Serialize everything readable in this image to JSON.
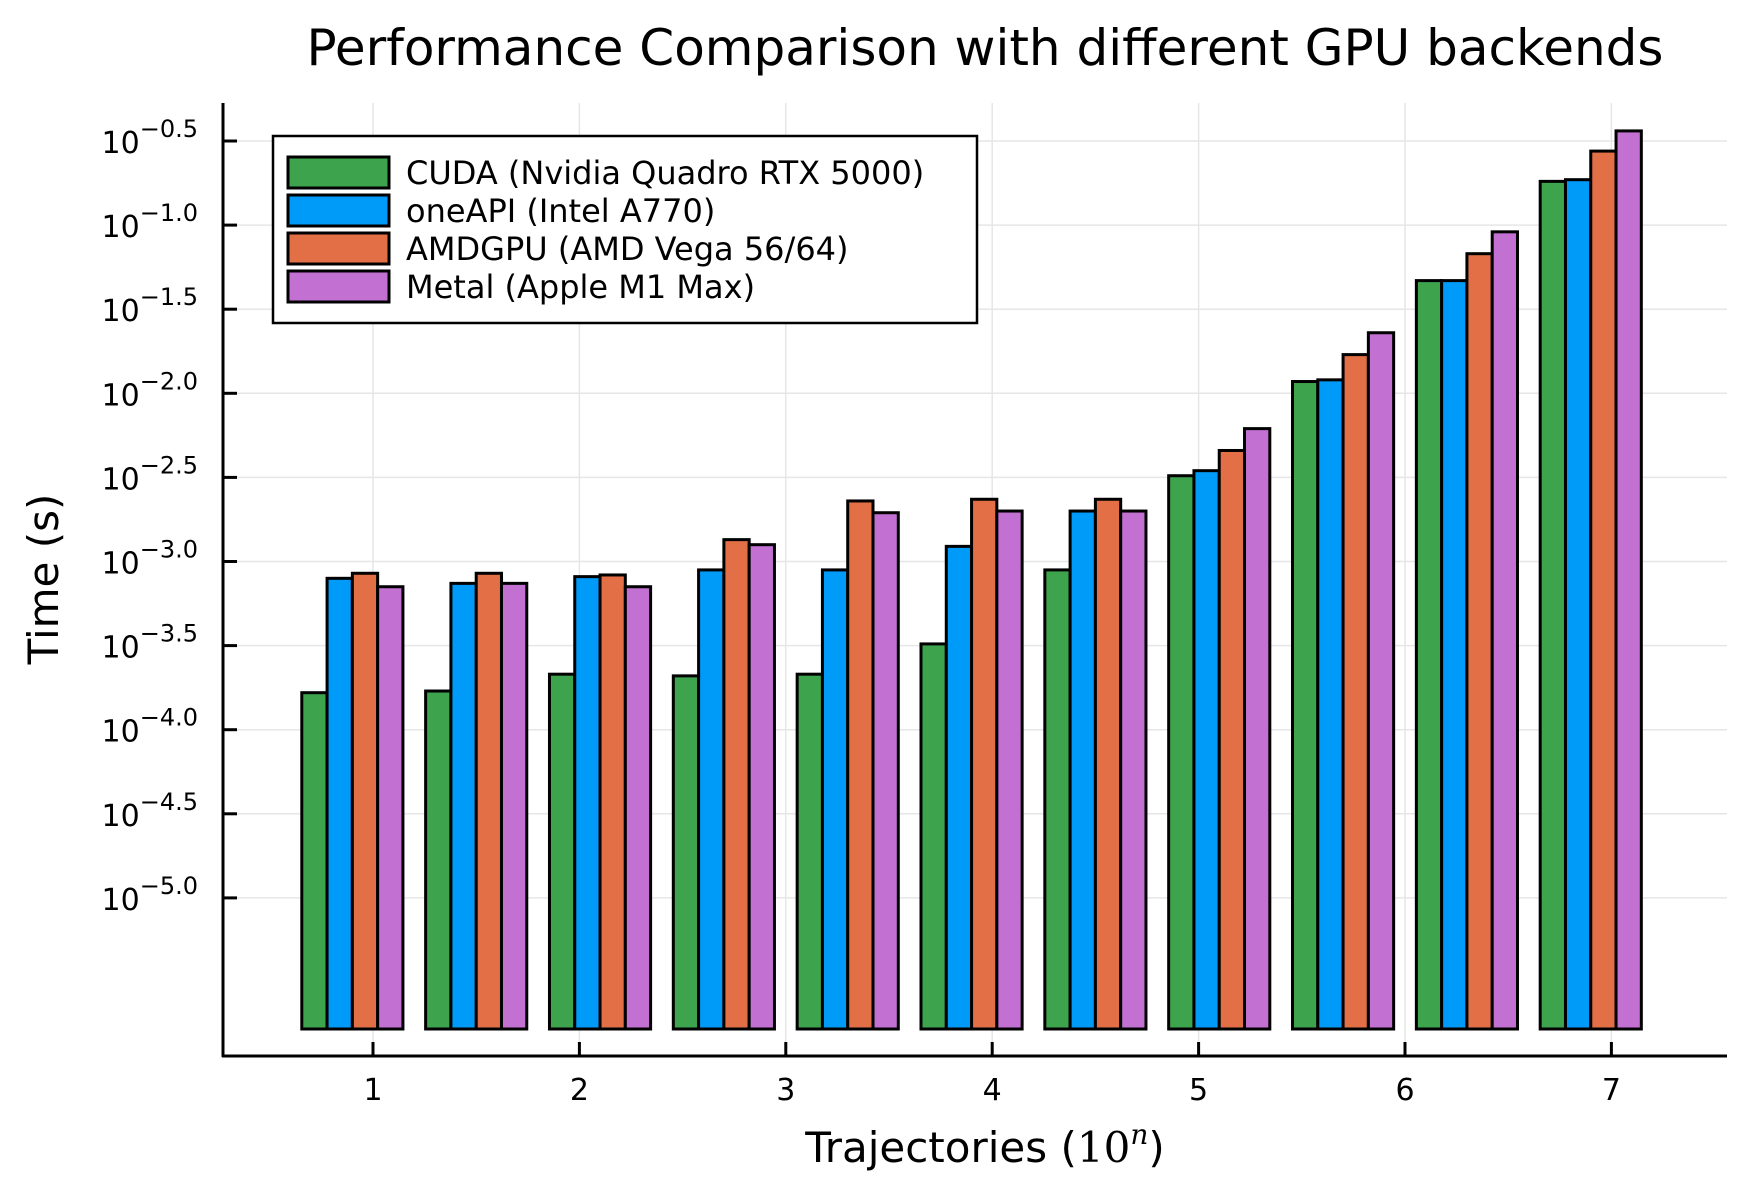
{
  "chart_data": {
    "type": "bar",
    "title": "Performance Comparison with different GPU backends",
    "xlabel": "Trajectories",
    "xlabel_math": {
      "open": "(",
      "base": "10",
      "exponent": "n",
      "close": ")"
    },
    "ylabel": "Time (s)",
    "yscale": "log10",
    "ylim_log10": [
      -5.77,
      -0.3
    ],
    "xlim": [
      0.35,
      7.6
    ],
    "grid": true,
    "legend_position": "top-left",
    "x_ticks": [
      1,
      2,
      3,
      4,
      5,
      6,
      7
    ],
    "x_tick_labels": [
      "1",
      "2",
      "3",
      "4",
      "5",
      "6",
      "7"
    ],
    "y_ticks_log10": [
      -0.5,
      -1.0,
      -1.5,
      -2.0,
      -2.5,
      -3.0,
      -3.5,
      -4.0,
      -4.5,
      -5.0
    ],
    "y_tick_labels": [
      {
        "base": "10",
        "exp": "−0.5"
      },
      {
        "base": "10",
        "exp": "−1.0"
      },
      {
        "base": "10",
        "exp": "−1.5"
      },
      {
        "base": "10",
        "exp": "−2.0"
      },
      {
        "base": "10",
        "exp": "−2.5"
      },
      {
        "base": "10",
        "exp": "−3.0"
      },
      {
        "base": "10",
        "exp": "−3.5"
      },
      {
        "base": "10",
        "exp": "−4.0"
      },
      {
        "base": "10",
        "exp": "−4.5"
      },
      {
        "base": "10",
        "exp": "−5.0"
      }
    ],
    "x": [
      0.9,
      1.5,
      2.1,
      2.7,
      3.3,
      3.9,
      4.5,
      5.1,
      5.7,
      6.3,
      6.9
    ],
    "series": [
      {
        "name": "CUDA (Nvidia Quadro RTX 5000)",
        "color": "#3da44d",
        "values_log10": [
          -3.78,
          -3.77,
          -3.67,
          -3.68,
          -3.67,
          -3.49,
          -3.05,
          -2.49,
          -1.93,
          -1.33,
          -0.74
        ]
      },
      {
        "name": "oneAPI (Intel A770)",
        "color": "#009af9",
        "values_log10": [
          -3.1,
          -3.13,
          -3.09,
          -3.05,
          -3.05,
          -2.91,
          -2.7,
          -2.46,
          -1.92,
          -1.33,
          -0.73
        ]
      },
      {
        "name": "AMDGPU (AMD Vega 56/64)",
        "color": "#e26f46",
        "values_log10": [
          -3.07,
          -3.07,
          -3.08,
          -2.87,
          -2.64,
          -2.63,
          -2.63,
          -2.34,
          -1.77,
          -1.17,
          -0.56
        ]
      },
      {
        "name": "Metal (Apple M1 Max)",
        "color": "#c271d2",
        "values_log10": [
          -3.15,
          -3.13,
          -3.15,
          -2.9,
          -2.71,
          -2.7,
          -2.7,
          -2.21,
          -1.64,
          -1.04,
          -0.44
        ]
      }
    ]
  }
}
